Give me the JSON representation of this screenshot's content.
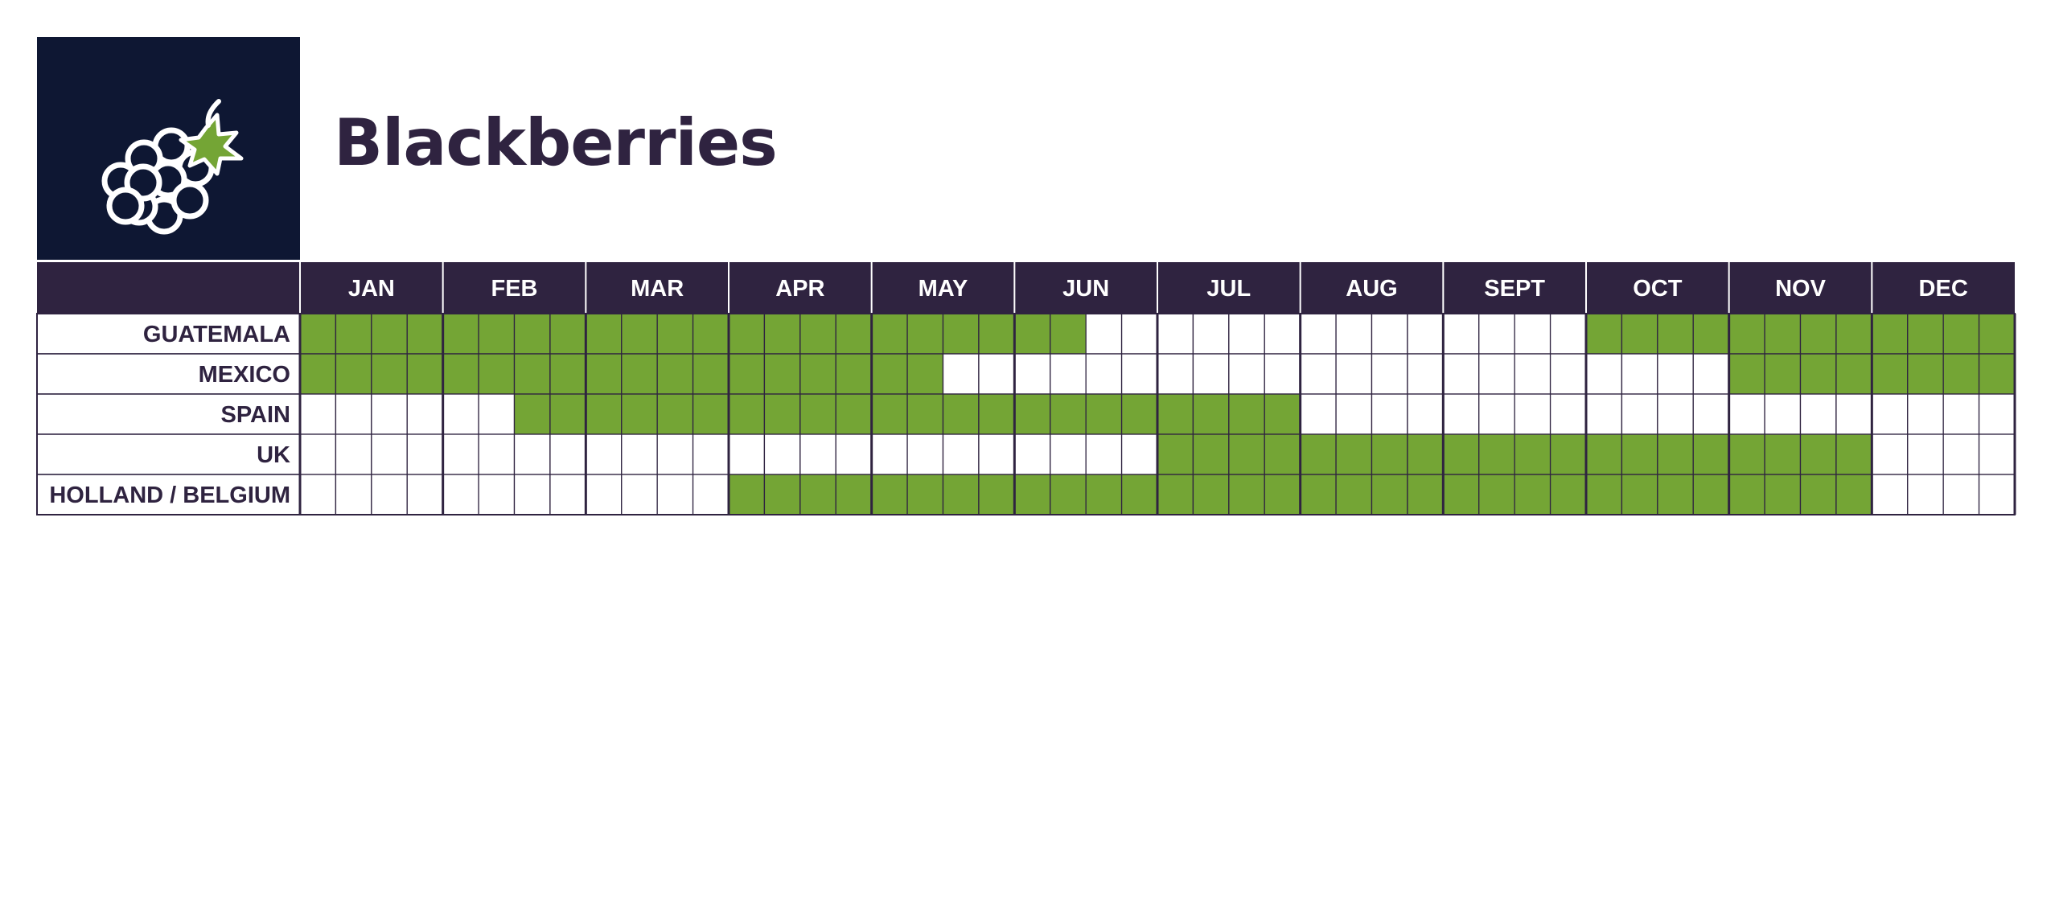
{
  "page": {
    "title": "Blackberries"
  },
  "colors": {
    "header_bg": "#2f2340",
    "logo_bg": "#0e1733",
    "in_season": "#74a535",
    "off_season": "#ffffff",
    "grid_line": "#2f2340",
    "label_text": "#2f2340",
    "header_text": "#ffffff"
  },
  "logo": {
    "icon": "blackberry-icon"
  },
  "chart_data": {
    "type": "table",
    "title": "Blackberries",
    "months": [
      "JAN",
      "FEB",
      "MAR",
      "APR",
      "MAY",
      "JUN",
      "JUL",
      "AUG",
      "SEPT",
      "OCT",
      "NOV",
      "DEC"
    ],
    "weeks_per_month": 4,
    "series": [
      {
        "name": "GUATEMALA",
        "weeks": [
          1,
          1,
          1,
          1,
          1,
          1,
          1,
          1,
          1,
          1,
          1,
          1,
          1,
          1,
          1,
          1,
          1,
          1,
          1,
          1,
          1,
          1,
          0,
          0,
          0,
          0,
          0,
          0,
          0,
          0,
          0,
          0,
          0,
          0,
          0,
          0,
          1,
          1,
          1,
          1,
          1,
          1,
          1,
          1,
          1,
          1,
          1,
          1
        ]
      },
      {
        "name": "MEXICO",
        "weeks": [
          1,
          1,
          1,
          1,
          1,
          1,
          1,
          1,
          1,
          1,
          1,
          1,
          1,
          1,
          1,
          1,
          1,
          1,
          0,
          0,
          0,
          0,
          0,
          0,
          0,
          0,
          0,
          0,
          0,
          0,
          0,
          0,
          0,
          0,
          0,
          0,
          0,
          0,
          0,
          0,
          1,
          1,
          1,
          1,
          1,
          1,
          1,
          1
        ]
      },
      {
        "name": "SPAIN",
        "weeks": [
          0,
          0,
          0,
          0,
          0,
          0,
          1,
          1,
          1,
          1,
          1,
          1,
          1,
          1,
          1,
          1,
          1,
          1,
          1,
          1,
          1,
          1,
          1,
          1,
          1,
          1,
          1,
          1,
          0,
          0,
          0,
          0,
          0,
          0,
          0,
          0,
          0,
          0,
          0,
          0,
          0,
          0,
          0,
          0,
          0,
          0,
          0,
          0
        ]
      },
      {
        "name": "UK",
        "weeks": [
          0,
          0,
          0,
          0,
          0,
          0,
          0,
          0,
          0,
          0,
          0,
          0,
          0,
          0,
          0,
          0,
          0,
          0,
          0,
          0,
          0,
          0,
          0,
          0,
          1,
          1,
          1,
          1,
          1,
          1,
          1,
          1,
          1,
          1,
          1,
          1,
          1,
          1,
          1,
          1,
          1,
          1,
          1,
          1,
          0,
          0,
          0,
          0
        ]
      },
      {
        "name": "HOLLAND / BELGIUM",
        "weeks": [
          0,
          0,
          0,
          0,
          0,
          0,
          0,
          0,
          0,
          0,
          0,
          0,
          1,
          1,
          1,
          1,
          1,
          1,
          1,
          1,
          1,
          1,
          1,
          1,
          1,
          1,
          1,
          1,
          1,
          1,
          1,
          1,
          1,
          1,
          1,
          1,
          1,
          1,
          1,
          1,
          1,
          1,
          1,
          1,
          0,
          0,
          0,
          0
        ]
      }
    ]
  }
}
